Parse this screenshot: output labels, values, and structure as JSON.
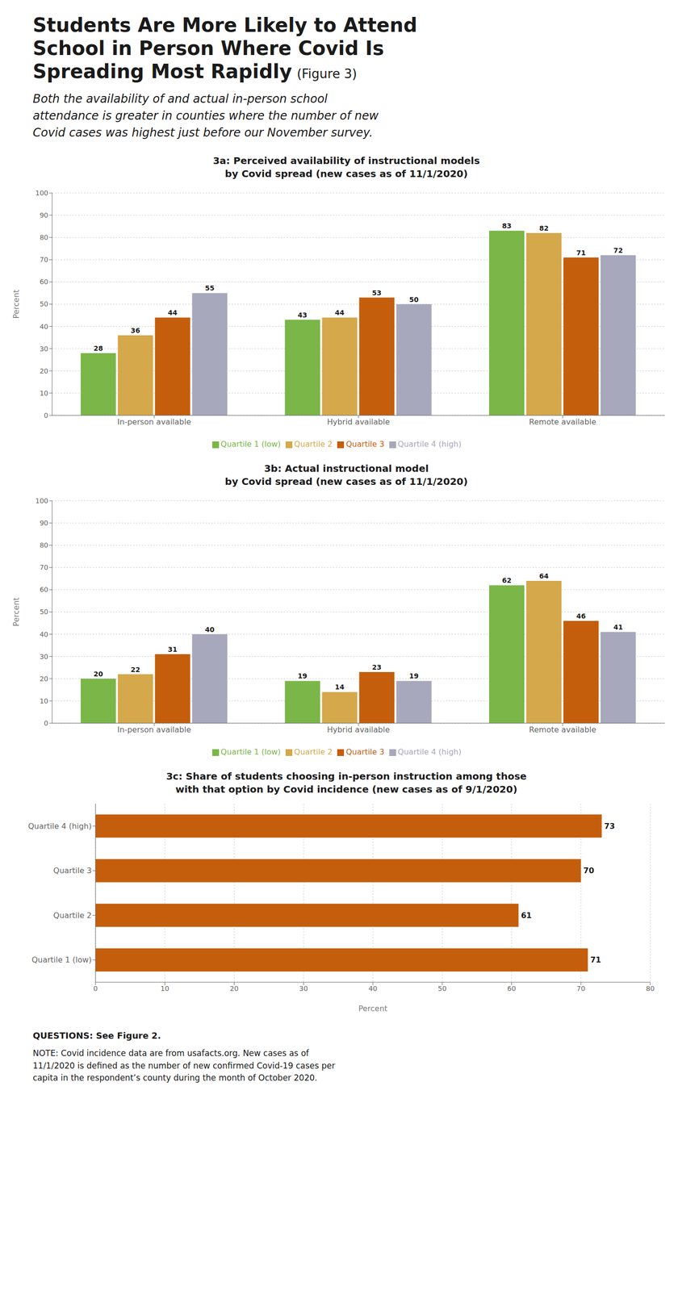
{
  "title": "Students Are More Likely to Attend\nSchool in Person Where Covid Is\nSpreading Most Rapidly",
  "subtitle": "Both the availability of and actual in-person school\nattendance is greater in counties where the number of new\nCovid cases was highest just before our November survey.",
  "annotations": [
    "(Figure 3)",
    "QUESTIONS: See Figure 2.",
    "NOTE: Covid incidence data are from usafacts.org. New cases as of\n11/1/2020 is defined as the number of new confirmed Covid-19 cases per\ncapita in the respondent’s county during the month of October 2020."
  ],
  "chart_data": [
    {
      "type": "bar",
      "title": "3a: Perceived availability of instructional models\nby Covid spread (new cases as of 11/1/2020)",
      "categories": [
        "In-person available",
        "Hybrid available",
        "Remote available"
      ],
      "series": [
        {
          "name": "Quartile 1 (low)",
          "color": "#7ab648",
          "values": [
            28,
            43,
            83
          ]
        },
        {
          "name": "Quartile 2",
          "color": "#d4a84b",
          "values": [
            36,
            44,
            82
          ]
        },
        {
          "name": "Quartile 3",
          "color": "#c45e0c",
          "values": [
            44,
            53,
            71
          ]
        },
        {
          "name": "Quartile 4 (high)",
          "color": "#a8a8bc",
          "values": [
            55,
            50,
            72
          ]
        }
      ],
      "y_label": "Percent",
      "ylim": [
        0,
        100
      ],
      "yticks": [
        0,
        10,
        20,
        30,
        40,
        50,
        60,
        70,
        80,
        90,
        100
      ],
      "grid": true,
      "legend": "bottom",
      "data_labels": true
    },
    {
      "type": "bar",
      "title": "3b: Actual instructional model\nby Covid spread (new cases as of 11/1/2020)",
      "categories": [
        "In-person available",
        "Hybrid available",
        "Remote available"
      ],
      "series": [
        {
          "name": "Quartile 1 (low)",
          "color": "#7ab648",
          "values": [
            20,
            19,
            62
          ]
        },
        {
          "name": "Quartile 2",
          "color": "#d4a84b",
          "values": [
            22,
            14,
            64
          ]
        },
        {
          "name": "Quartile 3",
          "color": "#c45e0c",
          "values": [
            31,
            23,
            46
          ]
        },
        {
          "name": "Quartile 4 (high)",
          "color": "#a8a8bc",
          "values": [
            40,
            19,
            41
          ]
        }
      ],
      "y_label": "Percent",
      "ylim": [
        0,
        100
      ],
      "yticks": [
        0,
        10,
        20,
        30,
        40,
        50,
        60,
        70,
        80,
        90,
        100
      ],
      "grid": true,
      "legend": "bottom",
      "data_labels": true
    },
    {
      "type": "bar",
      "orientation": "horizontal",
      "title": "3c: Share of students choosing in-person instruction among those\nwith that option by Covid incidence (new cases as of 9/1/2020)",
      "categories": [
        "Quartile 1 (low)",
        "Quartile 2",
        "Quartile 3",
        "Quartile 4 (high)"
      ],
      "values": [
        71,
        61,
        70,
        73
      ],
      "color": "#c45e0c",
      "x_label": "Percent",
      "xlim": [
        0,
        80
      ],
      "xticks": [
        0,
        10,
        20,
        30,
        40,
        50,
        60,
        70,
        80
      ],
      "grid": true,
      "data_labels": true
    }
  ]
}
